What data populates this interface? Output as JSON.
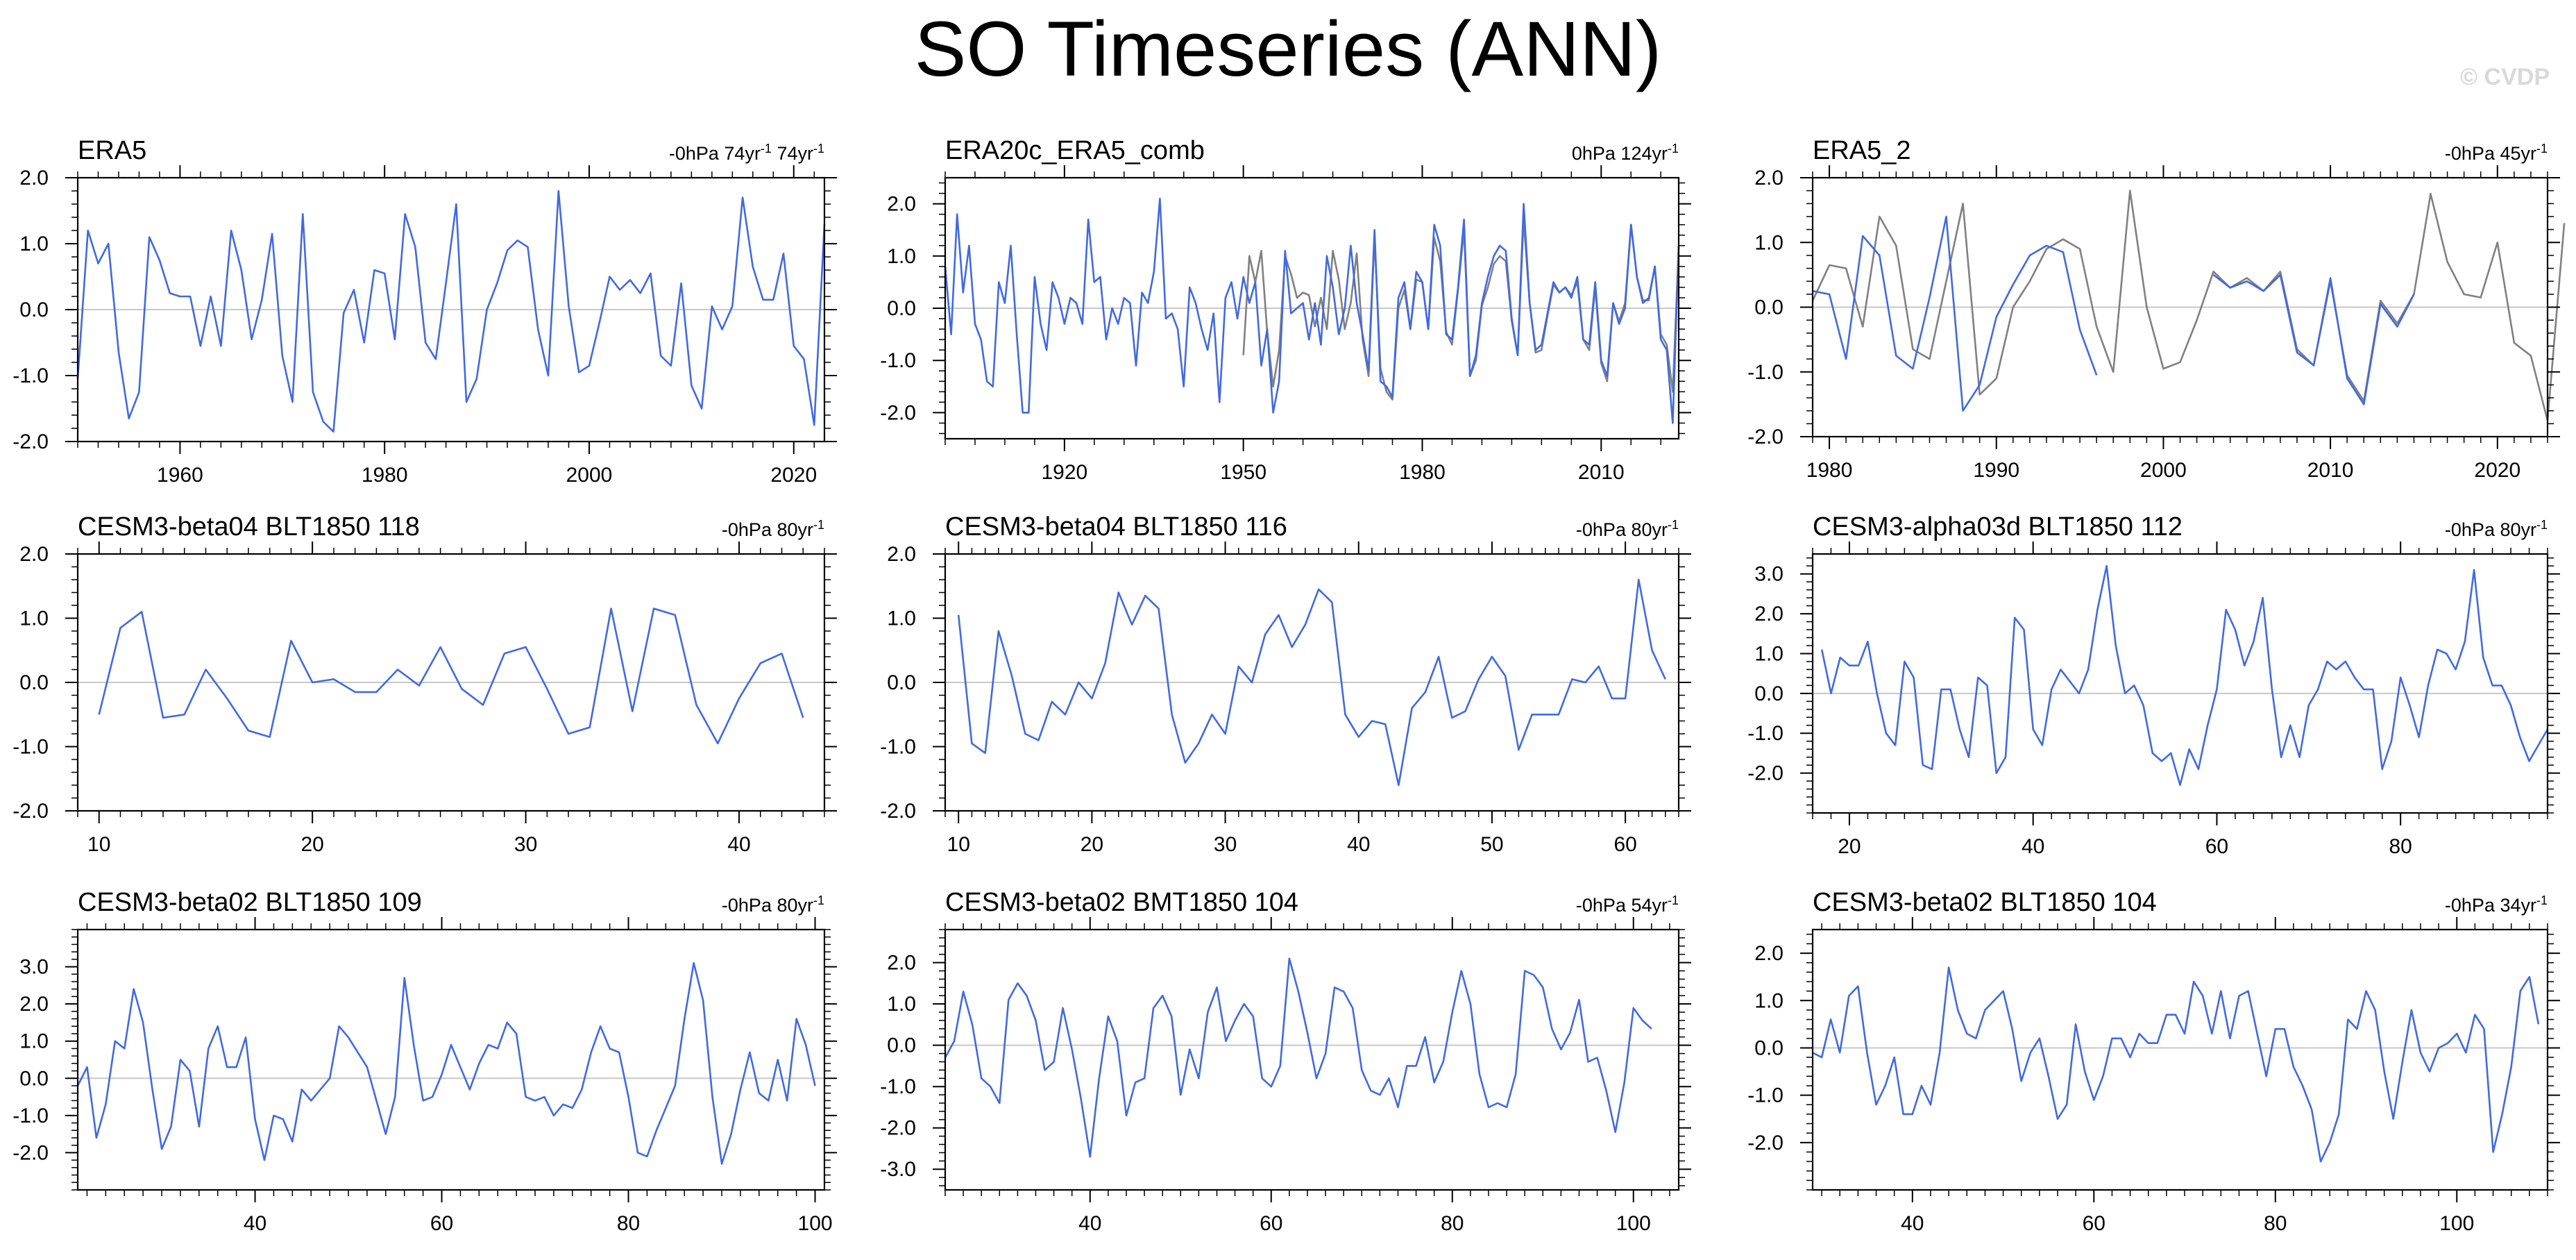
{
  "title": "SO Timeseries (ANN)",
  "watermark": "© CVDP",
  "chart_data": [
    {
      "type": "line",
      "title": "ERA5",
      "right_text": "-0hPa 74yr",
      "right_text_b": "74yr",
      "sup": "-1",
      "xlim": [
        1950,
        2023
      ],
      "ylim": [
        -2.0,
        2.0
      ],
      "xticks": [
        1960,
        1980,
        2000,
        2020
      ],
      "yticks": [
        -2.0,
        -1.0,
        0.0,
        1.0,
        2.0
      ],
      "series": [
        {
          "color": "#4169e1",
          "x_start": 1950,
          "values": [
            -1.05,
            1.2,
            0.7,
            1.0,
            -0.65,
            -1.65,
            -1.25,
            1.1,
            0.75,
            0.25,
            0.2,
            0.2,
            -0.55,
            0.2,
            -0.55,
            1.2,
            0.6,
            -0.45,
            0.15,
            1.15,
            -0.7,
            -1.4,
            1.45,
            -1.25,
            -1.7,
            -1.85,
            -0.05,
            0.3,
            -0.5,
            0.6,
            0.55,
            -0.45,
            1.45,
            0.95,
            -0.5,
            -0.75,
            0.4,
            1.6,
            -1.4,
            -1.05,
            0.0,
            0.4,
            0.9,
            1.05,
            0.95,
            -0.3,
            -1.0,
            1.8,
            0.05,
            -0.95,
            -0.85,
            -0.2,
            0.5,
            0.3,
            0.45,
            0.25,
            0.55,
            -0.7,
            -0.85,
            0.4,
            -1.15,
            -1.5,
            0.05,
            -0.3,
            0.05,
            1.7,
            0.65,
            0.15,
            0.15,
            0.85,
            -0.55,
            -0.75,
            -1.75,
            1.3
          ]
        }
      ]
    },
    {
      "type": "line",
      "title": "ERA20c_ERA5_comb",
      "right_text": "0hPa 124yr",
      "right_text_b": "",
      "sup": "-1",
      "xlim": [
        1900,
        2023
      ],
      "ylim": [
        -2.5,
        2.5
      ],
      "xticks": [
        1920,
        1950,
        1980,
        2010
      ],
      "yticks": [
        -2.0,
        -1.0,
        0.0,
        1.0,
        2.0
      ],
      "series": [
        {
          "color": "#808080",
          "x_start": 1950,
          "values": [
            -0.9,
            1.0,
            0.5,
            1.1,
            -0.45,
            -1.5,
            -0.8,
            1.0,
            0.65,
            0.2,
            0.3,
            0.25,
            -0.35,
            0.2,
            -0.4,
            1.1,
            0.55,
            -0.4,
            0.1,
            1.05,
            -0.6,
            -1.3,
            1.35,
            -1.15,
            -1.6,
            -1.75,
            0.0,
            0.35,
            -0.4,
            0.55,
            0.5,
            -0.4,
            1.35,
            0.9,
            -0.45,
            -0.7,
            0.35,
            1.5,
            -1.3,
            -1.0,
            0.05,
            0.4,
            0.85,
            1.0,
            0.9,
            -0.25,
            -0.9,
            1.7,
            0.1,
            -0.85,
            -0.8,
            -0.15,
            0.45,
            0.3,
            0.4,
            0.25,
            0.5,
            -0.6,
            -0.8,
            0.4,
            -1.05,
            -1.4,
            0.1,
            -0.25,
            0.1,
            1.6,
            0.6,
            0.15,
            0.15,
            0.8,
            -0.5,
            -0.7,
            -1.6,
            1.2
          ]
        },
        {
          "color": "#4169e1",
          "x_start": 1900,
          "values": [
            0.8,
            -0.5,
            1.8,
            0.3,
            1.2,
            -0.3,
            -0.6,
            -1.4,
            -1.5,
            0.5,
            0.1,
            1.2,
            -0.5,
            -2.0,
            -2.0,
            0.6,
            -0.3,
            -0.8,
            0.5,
            0.2,
            -0.3,
            0.2,
            0.1,
            -0.3,
            1.7,
            0.5,
            0.6,
            -0.6,
            0.0,
            -0.3,
            0.2,
            0.1,
            -1.1,
            0.3,
            0.1,
            0.7,
            2.1,
            -0.2,
            -0.1,
            -0.4,
            -1.5,
            0.4,
            0.1,
            -0.4,
            -0.8,
            -0.1,
            -1.8,
            0.2,
            0.5,
            -0.2,
            0.6,
            0.1,
            0.5,
            -1.1,
            -0.4,
            -2.0,
            -1.4,
            1.1,
            -0.1,
            0.0,
            0.1,
            -0.6,
            0.1,
            -0.7,
            1.0,
            0.4,
            -0.5,
            0.0,
            1.2,
            0.1,
            -0.5,
            -1.2,
            1.5,
            -1.4,
            -1.5,
            -1.7,
            0.2,
            0.5,
            -0.4,
            0.7,
            0.5,
            -0.4,
            1.6,
            1.2,
            -0.5,
            -0.6,
            0.4,
            1.7,
            -1.3,
            -0.9,
            0.1,
            0.6,
            1.0,
            1.2,
            1.1,
            -0.2,
            -0.9,
            2.0,
            0.1,
            -0.8,
            -0.7,
            -0.1,
            0.5,
            0.3,
            0.4,
            0.2,
            0.6,
            -0.6,
            -0.7,
            0.5,
            -1.0,
            -1.3,
            0.1,
            -0.3,
            0.0,
            1.6,
            0.6,
            0.1,
            0.2,
            0.8,
            -0.6,
            -0.8,
            -2.2,
            1.2
          ]
        }
      ]
    },
    {
      "type": "line",
      "title": "ERA5_2",
      "right_text": "-0hPa 45yr",
      "right_text_b": "",
      "sup": "-1",
      "xlim": [
        1979,
        2023
      ],
      "ylim": [
        -2.0,
        2.0
      ],
      "xticks": [
        1980,
        1990,
        2000,
        2010,
        2020
      ],
      "yticks": [
        -2.0,
        -1.0,
        0.0,
        1.0,
        2.0
      ],
      "series": [
        {
          "color": "#808080",
          "x_start": 1979,
          "values": [
            0.1,
            0.65,
            0.6,
            -0.3,
            1.4,
            0.95,
            -0.65,
            -0.8,
            0.4,
            1.6,
            -1.35,
            -1.1,
            0.0,
            0.4,
            0.9,
            1.05,
            0.9,
            -0.3,
            -1.0,
            1.8,
            0.0,
            -0.95,
            -0.85,
            -0.2,
            0.55,
            0.3,
            0.45,
            0.25,
            0.55,
            -0.65,
            -0.9,
            0.4,
            -1.05,
            -1.45,
            0.1,
            -0.25,
            0.2,
            1.75,
            0.7,
            0.2,
            0.15,
            1.0,
            -0.55,
            -0.75,
            -1.75,
            1.3
          ]
        },
        {
          "color": "#4169e1",
          "x_start": 1979,
          "values": [
            0.25,
            0.2,
            -0.8,
            1.1,
            0.8,
            -0.75,
            -0.95,
            0.15,
            1.4,
            -1.6,
            -1.2,
            -0.15,
            0.35,
            0.8,
            0.95,
            0.85,
            -0.35,
            -1.05
          ]
        },
        {
          "color": "#4169e1",
          "x_start": 2003,
          "values": [
            0.5,
            0.3,
            0.4,
            0.25,
            0.5,
            -0.7,
            -0.9,
            0.45,
            -1.1,
            -1.5,
            0.05,
            -0.3,
            0.2
          ]
        }
      ]
    },
    {
      "type": "line",
      "title": "CESM3-beta04 BLT1850 118",
      "right_text": "-0hPa 80yr",
      "right_text_b": "",
      "sup": "-1",
      "xlim": [
        9,
        44
      ],
      "ylim": [
        -2.0,
        2.0
      ],
      "xticks": [
        10,
        20,
        30,
        40
      ],
      "yticks": [
        -2.0,
        -1.0,
        0.0,
        1.0,
        2.0
      ],
      "series": [
        {
          "color": "#4169e1",
          "x_start": 10,
          "values": [
            -0.5,
            0.85,
            1.1,
            -0.55,
            -0.5,
            0.2,
            -0.25,
            -0.75,
            -0.85,
            0.65,
            0.0,
            0.05,
            -0.15,
            -0.15,
            0.2,
            -0.05,
            0.55,
            -0.1,
            -0.35,
            0.45,
            0.55,
            -0.1,
            -0.8,
            -0.7,
            1.15,
            -0.45,
            1.15,
            1.05,
            -0.35,
            -0.95,
            -0.25,
            0.3,
            0.45,
            -0.55
          ]
        }
      ]
    },
    {
      "type": "line",
      "title": "CESM3-beta04 BLT1850 116",
      "right_text": "-0hPa 80yr",
      "right_text_b": "",
      "sup": "-1",
      "xlim": [
        9,
        64
      ],
      "ylim": [
        -2.0,
        2.0
      ],
      "xticks": [
        10,
        20,
        30,
        40,
        50,
        60
      ],
      "yticks": [
        -2.0,
        -1.0,
        0.0,
        1.0,
        2.0
      ],
      "series": [
        {
          "color": "#4169e1",
          "x_start": 10,
          "values": [
            1.05,
            -0.95,
            -1.1,
            0.8,
            0.1,
            -0.8,
            -0.9,
            -0.3,
            -0.5,
            0.0,
            -0.25,
            0.3,
            1.4,
            0.9,
            1.35,
            1.15,
            -0.5,
            -1.25,
            -0.95,
            -0.5,
            -0.8,
            0.25,
            0.0,
            0.75,
            1.05,
            0.55,
            0.9,
            1.45,
            1.25,
            -0.5,
            -0.85,
            -0.6,
            -0.65,
            -1.6,
            -0.4,
            -0.15,
            0.4,
            -0.55,
            -0.45,
            0.05,
            0.4,
            0.1,
            -1.05,
            -0.5,
            -0.5,
            -0.5,
            0.05,
            0.0,
            0.25,
            -0.25,
            -0.25,
            1.6,
            0.5,
            0.05
          ]
        }
      ]
    },
    {
      "type": "line",
      "title": "CESM3-alpha03d BLT1850 112",
      "right_text": "-0hPa 80yr",
      "right_text_b": "",
      "sup": "-1",
      "xlim": [
        16,
        96
      ],
      "ylim": [
        -3.0,
        3.5
      ],
      "xticks": [
        20,
        40,
        60,
        80
      ],
      "yticks": [
        -2.0,
        -1.0,
        0.0,
        1.0,
        2.0,
        3.0
      ],
      "series": [
        {
          "color": "#4169e1",
          "x_start": 17,
          "values": [
            1.1,
            0.0,
            0.9,
            0.7,
            0.7,
            1.3,
            0.0,
            -1.0,
            -1.3,
            0.8,
            0.4,
            -1.8,
            -1.9,
            0.1,
            0.1,
            -0.9,
            -1.6,
            0.4,
            0.2,
            -2.0,
            -1.6,
            1.9,
            1.6,
            -0.9,
            -1.3,
            0.1,
            0.6,
            0.3,
            0.0,
            0.6,
            2.1,
            3.2,
            1.2,
            0.0,
            0.2,
            -0.3,
            -1.5,
            -1.7,
            -1.5,
            -2.3,
            -1.4,
            -1.9,
            -0.8,
            0.1,
            2.1,
            1.6,
            0.7,
            1.3,
            2.4,
            0.1,
            -1.6,
            -0.8,
            -1.6,
            -0.3,
            0.1,
            0.8,
            0.6,
            0.8,
            0.4,
            0.1,
            0.1,
            -1.9,
            -1.2,
            0.4,
            -0.3,
            -1.1,
            0.2,
            1.1,
            1.0,
            0.6,
            1.3,
            3.1,
            0.9,
            0.2,
            0.2,
            -0.3,
            -1.1,
            -1.7,
            -1.3,
            -0.9
          ]
        }
      ]
    },
    {
      "type": "line",
      "title": "CESM3-beta02 BLT1850 109",
      "right_text": "-0hPa 80yr",
      "right_text_b": "",
      "sup": "-1",
      "xlim": [
        21,
        101
      ],
      "ylim": [
        -3.0,
        4.0
      ],
      "xticks": [
        40,
        60,
        80,
        100
      ],
      "yticks": [
        -2.0,
        -1.0,
        0.0,
        1.0,
        2.0,
        3.0
      ],
      "series": [
        {
          "color": "#4169e1",
          "x_start": 21,
          "values": [
            -0.2,
            0.3,
            -1.6,
            -0.7,
            1.0,
            0.8,
            2.4,
            1.5,
            -0.3,
            -1.9,
            -1.3,
            0.5,
            0.2,
            -1.3,
            0.8,
            1.4,
            0.3,
            0.3,
            1.1,
            -1.1,
            -2.2,
            -1.0,
            -1.1,
            -1.7,
            -0.3,
            -0.6,
            -0.3,
            0.0,
            1.4,
            1.1,
            0.7,
            0.3,
            -0.6,
            -1.5,
            -0.5,
            2.7,
            0.9,
            -0.6,
            -0.5,
            0.1,
            0.9,
            0.3,
            -0.3,
            0.4,
            0.9,
            0.8,
            1.5,
            1.2,
            -0.5,
            -0.6,
            -0.5,
            -1.0,
            -0.7,
            -0.8,
            -0.3,
            0.7,
            1.4,
            0.8,
            0.7,
            -0.5,
            -2.0,
            -2.1,
            -1.4,
            -0.8,
            -0.2,
            1.6,
            3.1,
            2.1,
            -0.5,
            -2.3,
            -1.5,
            -0.3,
            0.7,
            -0.4,
            -0.6,
            0.5,
            -0.6,
            1.6,
            0.9,
            -0.2
          ]
        }
      ]
    },
    {
      "type": "line",
      "title": "CESM3-beta02 BMT1850 104",
      "right_text": "-0hPa 54yr",
      "right_text_b": "",
      "sup": "-1",
      "xlim": [
        24,
        105
      ],
      "ylim": [
        -3.5,
        2.8
      ],
      "xticks": [
        40,
        60,
        80,
        100
      ],
      "yticks": [
        -3.0,
        -2.0,
        -1.0,
        0.0,
        1.0,
        2.0
      ],
      "series": [
        {
          "color": "#4169e1",
          "x_start": 24,
          "values": [
            -0.3,
            0.1,
            1.3,
            0.5,
            -0.8,
            -1.0,
            -1.4,
            1.1,
            1.5,
            1.2,
            0.6,
            -0.6,
            -0.4,
            0.9,
            -0.1,
            -1.3,
            -2.7,
            -0.8,
            0.7,
            0.1,
            -1.7,
            -0.9,
            -0.8,
            0.9,
            1.2,
            0.7,
            -1.2,
            -0.1,
            -0.8,
            0.8,
            1.4,
            0.1,
            0.6,
            1.0,
            0.7,
            -0.8,
            -1.0,
            -0.5,
            2.1,
            1.3,
            0.3,
            -0.8,
            -0.2,
            1.4,
            1.3,
            0.9,
            -0.6,
            -1.1,
            -1.2,
            -0.8,
            -1.5,
            -0.5,
            -0.5,
            0.2,
            -0.9,
            -0.4,
            0.8,
            1.8,
            1.0,
            -0.7,
            -1.5,
            -1.4,
            -1.5,
            -0.7,
            1.8,
            1.7,
            1.4,
            0.4,
            -0.1,
            0.3,
            1.1,
            -0.4,
            -0.3,
            -1.1,
            -2.1,
            -0.9,
            0.9,
            0.6,
            0.4
          ]
        }
      ]
    },
    {
      "type": "line",
      "title": "CESM3-beta02 BLT1850 104",
      "right_text": "-0hPa 34yr",
      "right_text_b": "",
      "sup": "-1",
      "xlim": [
        29,
        110
      ],
      "ylim": [
        -3.0,
        2.5
      ],
      "xticks": [
        40,
        60,
        80,
        100
      ],
      "yticks": [
        -2.0,
        -1.0,
        0.0,
        1.0,
        2.0
      ],
      "series": [
        {
          "color": "#4169e1",
          "x_start": 29,
          "values": [
            -0.1,
            -0.2,
            0.6,
            -0.1,
            1.1,
            1.3,
            -0.1,
            -1.2,
            -0.8,
            -0.2,
            -1.4,
            -1.4,
            -0.8,
            -1.2,
            -0.1,
            1.7,
            0.8,
            0.3,
            0.2,
            0.8,
            1.0,
            1.2,
            0.4,
            -0.7,
            -0.1,
            0.2,
            -0.6,
            -1.5,
            -1.2,
            0.5,
            -0.5,
            -1.1,
            -0.6,
            0.2,
            0.2,
            -0.2,
            0.3,
            0.1,
            0.1,
            0.7,
            0.7,
            0.3,
            1.4,
            1.1,
            0.3,
            1.2,
            0.2,
            1.1,
            1.2,
            0.3,
            -0.6,
            0.4,
            0.4,
            -0.4,
            -0.8,
            -1.3,
            -2.4,
            -2.0,
            -1.4,
            0.6,
            0.4,
            1.2,
            0.8,
            -0.5,
            -1.5,
            -0.3,
            0.8,
            -0.1,
            -0.5,
            0.0,
            0.1,
            0.3,
            -0.1,
            0.7,
            0.4,
            -2.2,
            -1.4,
            -0.4,
            1.2,
            1.5,
            0.5
          ]
        }
      ]
    }
  ]
}
